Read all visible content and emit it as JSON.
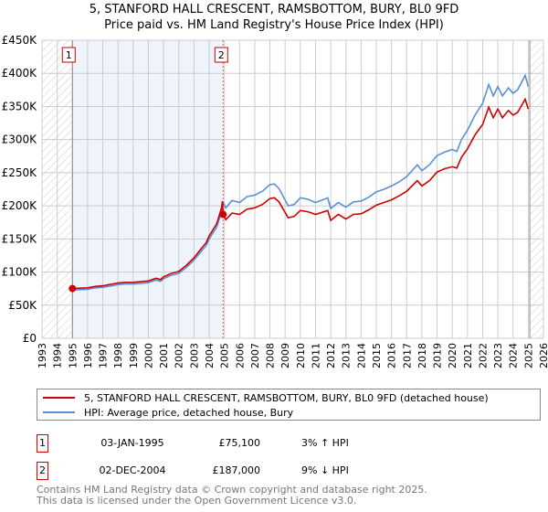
{
  "chart_data": {
    "type": "line",
    "title": "5, STANFORD HALL CRESCENT, RAMSBOTTOM, BURY, BL0 9FD",
    "subtitle": "Price paid vs. HM Land Registry's House Price Index (HPI)",
    "xlim": [
      1993,
      2026
    ],
    "ylim": [
      0,
      450000
    ],
    "x_ticks": [
      "1993",
      "1994",
      "1995",
      "1996",
      "1997",
      "1998",
      "1999",
      "2000",
      "2001",
      "2002",
      "2003",
      "2004",
      "2005",
      "2006",
      "2007",
      "2008",
      "2009",
      "2010",
      "2011",
      "2012",
      "2013",
      "2014",
      "2015",
      "2016",
      "2017",
      "2018",
      "2019",
      "2020",
      "2021",
      "2022",
      "2023",
      "2024",
      "2025",
      "2026"
    ],
    "y_ticks": [
      {
        "v": 0,
        "label": "£0"
      },
      {
        "v": 50000,
        "label": "£50K"
      },
      {
        "v": 100000,
        "label": "£100K"
      },
      {
        "v": 150000,
        "label": "£150K"
      },
      {
        "v": 200000,
        "label": "£200K"
      },
      {
        "v": 250000,
        "label": "£250K"
      },
      {
        "v": 300000,
        "label": "£300K"
      },
      {
        "v": 350000,
        "label": "£350K"
      },
      {
        "v": 400000,
        "label": "£400K"
      },
      {
        "v": 450000,
        "label": "£450K"
      }
    ],
    "grid": true,
    "hatched_ranges": [
      [
        1993,
        1995.0
      ],
      [
        2025.1,
        2026
      ]
    ],
    "shaded_range": [
      1995.0,
      2004.92
    ],
    "series": [
      {
        "name": "5, STANFORD HALL CRESCENT, RAMSBOTTOM, BURY, BL0 9FD (detached house)",
        "color": "#cc0000",
        "x": [
          1995.0,
          1995.5,
          1996,
          1996.5,
          1997,
          1997.5,
          1998,
          1998.5,
          1999,
          1999.5,
          2000,
          2000.5,
          2000.8,
          2001,
          2001.5,
          2002,
          2002.5,
          2003,
          2003.5,
          2003.8,
          2004,
          2004.5,
          2004.8,
          2004.88,
          2004.92,
          2005.1,
          2005.5,
          2006,
          2006.5,
          2007,
          2007.5,
          2008,
          2008.3,
          2008.6,
          2009.2,
          2009.6,
          2010,
          2010.5,
          2011,
          2011.8,
          2012,
          2012.5,
          2013,
          2013.5,
          2014,
          2014.5,
          2015,
          2015.5,
          2016,
          2016.5,
          2017,
          2017.7,
          2018,
          2018.5,
          2019,
          2019.5,
          2020,
          2020.3,
          2020.6,
          2021,
          2021.5,
          2022,
          2022.4,
          2022.7,
          2023,
          2023.3,
          2023.7,
          2024,
          2024.3,
          2024.8,
          2025.0
        ],
        "y": [
          75100,
          75700,
          76200,
          78300,
          79300,
          81400,
          83400,
          84500,
          84500,
          85500,
          86500,
          90600,
          88600,
          92700,
          97900,
          100900,
          110200,
          121500,
          136000,
          144200,
          154500,
          173000,
          195700,
          207000,
          187000,
          179000,
          189000,
          187000,
          195000,
          197000,
          202000,
          211000,
          212000,
          206000,
          182000,
          184000,
          193000,
          191000,
          187000,
          193000,
          178000,
          187000,
          180000,
          187000,
          188000,
          194000,
          201000,
          205000,
          209000,
          215000,
          222000,
          238000,
          230000,
          238000,
          251000,
          256000,
          259000,
          257000,
          273000,
          286000,
          307000,
          323000,
          349000,
          333000,
          346000,
          333000,
          344000,
          337000,
          341000,
          361000,
          346000
        ]
      },
      {
        "name": "HPI: Average price, detached house, Bury",
        "color": "#5b8fd4",
        "x": [
          1995.0,
          1995.5,
          1996,
          1996.5,
          1997,
          1997.5,
          1998,
          1998.5,
          1999,
          1999.5,
          2000,
          2000.5,
          2000.8,
          2001,
          2001.5,
          2002,
          2002.5,
          2003,
          2003.5,
          2003.8,
          2004,
          2004.5,
          2004.8,
          2004.92,
          2005.1,
          2005.5,
          2006,
          2006.5,
          2007,
          2007.5,
          2008,
          2008.3,
          2008.6,
          2009.2,
          2009.6,
          2010,
          2010.5,
          2011,
          2011.8,
          2012,
          2012.5,
          2013,
          2013.5,
          2014,
          2014.5,
          2015,
          2015.5,
          2016,
          2016.5,
          2017,
          2017.7,
          2018,
          2018.5,
          2019,
          2019.5,
          2020,
          2020.3,
          2020.6,
          2021,
          2021.5,
          2022,
          2022.4,
          2022.7,
          2023,
          2023.3,
          2023.7,
          2024,
          2024.3,
          2024.8,
          2025.0
        ],
        "y": [
          73000,
          73500,
          74000,
          76000,
          77000,
          79000,
          81000,
          82000,
          82000,
          83000,
          84000,
          88000,
          86000,
          90000,
          95000,
          98000,
          107000,
          118000,
          132000,
          140000,
          150000,
          168000,
          190000,
          205000,
          197000,
          208000,
          205000,
          214000,
          216000,
          222000,
          232000,
          233000,
          226000,
          200000,
          202000,
          212000,
          210000,
          205000,
          212000,
          196000,
          205000,
          198000,
          206000,
          207000,
          213000,
          221000,
          225000,
          230000,
          236000,
          244000,
          262000,
          253000,
          262000,
          276000,
          281000,
          285000,
          282000,
          300000,
          314000,
          337000,
          355000,
          383000,
          366000,
          380000,
          366000,
          378000,
          370000,
          375000,
          397000,
          380000
        ]
      }
    ],
    "sales": [
      {
        "label": "1",
        "x": 1995.0,
        "price": 75100,
        "date": "03-JAN-1995",
        "price_text": "£75,100",
        "hpi_text": "3% ↑ HPI"
      },
      {
        "label": "2",
        "x": 2004.92,
        "price": 187000,
        "date": "02-DEC-2004",
        "price_text": "£187,000",
        "hpi_text": "9% ↓ HPI"
      }
    ],
    "legend": {
      "placement": "below"
    }
  },
  "footer": {
    "line1": "Contains HM Land Registry data © Crown copyright and database right 2025.",
    "line2": "This data is licensed under the Open Government Licence v3.0."
  }
}
